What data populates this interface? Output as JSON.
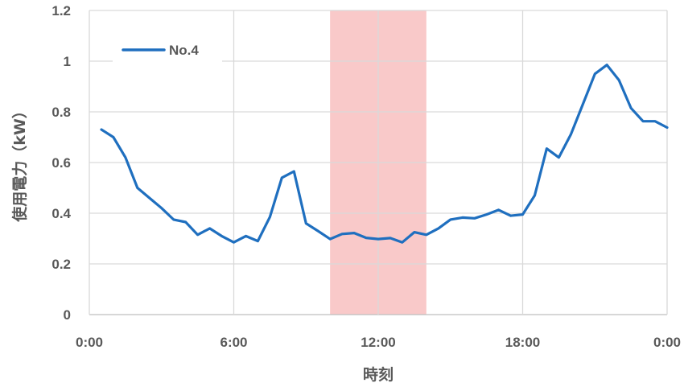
{
  "chart_data": {
    "type": "line",
    "xlabel": "時刻",
    "ylabel": "使用電力（kW）",
    "x_unit": "hours",
    "xlim": [
      0,
      24
    ],
    "ylim": [
      0,
      1.2
    ],
    "x_ticks": [
      0,
      6,
      12,
      18,
      24
    ],
    "x_tick_labels": [
      "0:00",
      "6:00",
      "12:00",
      "18:00",
      "0:00"
    ],
    "y_ticks": [
      0,
      0.2,
      0.4,
      0.6,
      0.8,
      1.0,
      1.2
    ],
    "y_tick_labels": [
      "0",
      "0.2",
      "0.4",
      "0.6",
      "0.8",
      "1",
      "1.2"
    ],
    "grid": true,
    "legend_position": "top-left",
    "highlight": {
      "x_start": 10,
      "x_end": 14,
      "color": "#f9c9c9"
    },
    "series": [
      {
        "name": "No.4",
        "color": "#1f6fbf",
        "x": [
          0.5,
          1.0,
          1.5,
          2.0,
          2.5,
          3.0,
          3.5,
          4.0,
          4.5,
          5.0,
          5.5,
          6.0,
          6.5,
          7.0,
          7.5,
          8.0,
          8.5,
          9.0,
          9.5,
          10.0,
          10.5,
          11.0,
          11.5,
          12.0,
          12.5,
          13.0,
          13.5,
          14.0,
          14.5,
          15.0,
          15.5,
          16.0,
          16.5,
          17.0,
          17.5,
          18.0,
          18.5,
          19.0,
          19.5,
          20.0,
          20.5,
          21.0,
          21.5,
          22.0,
          22.5,
          23.0,
          23.5,
          24.0
        ],
        "values": [
          0.73,
          0.7,
          0.62,
          0.5,
          0.46,
          0.42,
          0.375,
          0.365,
          0.315,
          0.34,
          0.31,
          0.285,
          0.31,
          0.29,
          0.385,
          0.54,
          0.565,
          0.36,
          0.33,
          0.298,
          0.318,
          0.322,
          0.303,
          0.298,
          0.302,
          0.285,
          0.325,
          0.315,
          0.34,
          0.375,
          0.383,
          0.38,
          0.395,
          0.413,
          0.39,
          0.395,
          0.47,
          0.655,
          0.62,
          0.71,
          0.83,
          0.95,
          0.985,
          0.925,
          0.815,
          0.763,
          0.763,
          0.738
        ]
      }
    ]
  }
}
